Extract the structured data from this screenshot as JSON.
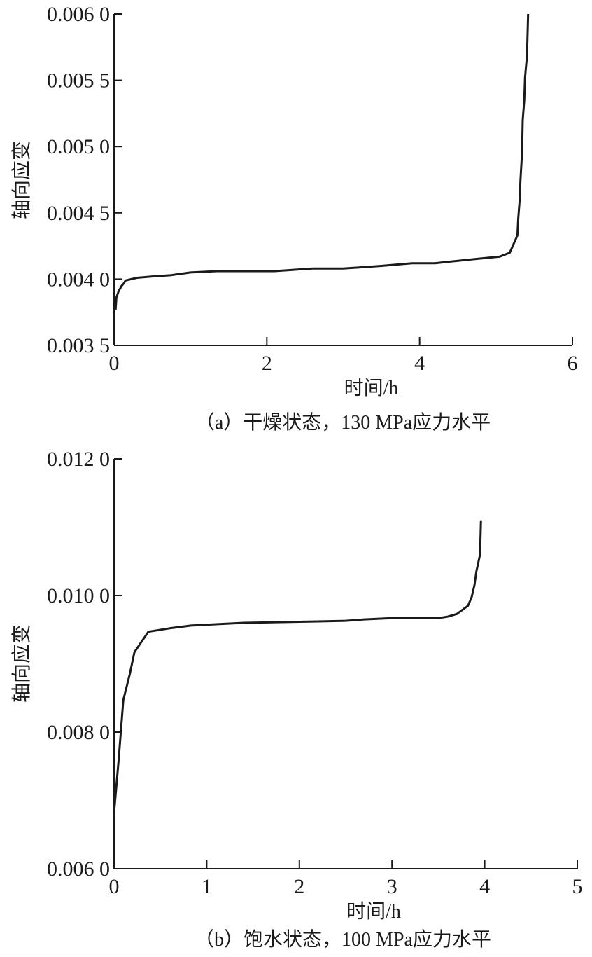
{
  "chart_data": [
    {
      "type": "line",
      "caption": "（a）干燥状态，130 MPa应力水平",
      "xlabel": "时间/h",
      "ylabel": "轴向应变",
      "xlim": [
        0,
        6
      ],
      "ylim": [
        0.0035,
        0.006
      ],
      "xticks": [
        "0",
        "2",
        "4",
        "6"
      ],
      "xtick_values": [
        0,
        2,
        4,
        6
      ],
      "yticks": [
        "0.003 5",
        "0.004 0",
        "0.004 5",
        "0.005 0",
        "0.005 5",
        "0.006 0"
      ],
      "ytick_values": [
        0.0035,
        0.004,
        0.0045,
        0.005,
        0.0055,
        0.006
      ],
      "grid": false,
      "series": [
        {
          "x": [
            0.02,
            0.03,
            0.06,
            0.1,
            0.13,
            0.15,
            0.3,
            0.5,
            0.75,
            1.0,
            1.35,
            1.7,
            2.1,
            2.6,
            3.0,
            3.5,
            3.9,
            4.2,
            4.7,
            5.05,
            5.18,
            5.28,
            5.29,
            5.31,
            5.32,
            5.34,
            5.35,
            5.37,
            5.38,
            5.4,
            5.41,
            5.42
          ],
          "y": [
            0.00377,
            0.00386,
            0.00391,
            0.00395,
            0.00397,
            0.00399,
            0.00401,
            0.00402,
            0.00403,
            0.00405,
            0.00406,
            0.00406,
            0.00406,
            0.00408,
            0.00408,
            0.0041,
            0.00412,
            0.00412,
            0.00415,
            0.00417,
            0.0042,
            0.00433,
            0.00445,
            0.0046,
            0.00475,
            0.00495,
            0.0052,
            0.00535,
            0.00552,
            0.00565,
            0.00578,
            0.006
          ]
        }
      ]
    },
    {
      "type": "line",
      "caption": "（b）饱水状态，100 MPa应力水平",
      "xlabel": "时间/h",
      "ylabel": "轴向应变",
      "xlim": [
        0,
        5
      ],
      "ylim": [
        0.006,
        0.012
      ],
      "xticks": [
        "0",
        "1",
        "2",
        "3",
        "4",
        "5"
      ],
      "xtick_values": [
        0,
        1,
        2,
        3,
        4,
        5
      ],
      "yticks": [
        "0.006 0",
        "0.008 0",
        "0.010 0",
        "0.012 0"
      ],
      "ytick_values": [
        0.006,
        0.008,
        0.01,
        0.012
      ],
      "grid": false,
      "series": [
        {
          "x": [
            0.0,
            0.05,
            0.1,
            0.17,
            0.22,
            0.37,
            0.6,
            0.83,
            1.1,
            1.4,
            1.8,
            2.2,
            2.5,
            2.7,
            3.0,
            3.3,
            3.5,
            3.6,
            3.7,
            3.82,
            3.86,
            3.89,
            3.91,
            3.95,
            3.96
          ],
          "y": [
            0.00682,
            0.0076,
            0.00847,
            0.00885,
            0.00917,
            0.00947,
            0.00952,
            0.00956,
            0.00958,
            0.0096,
            0.00961,
            0.00962,
            0.00963,
            0.00965,
            0.00967,
            0.00967,
            0.00967,
            0.00969,
            0.00973,
            0.00985,
            0.00998,
            0.01015,
            0.01035,
            0.0106,
            0.0111
          ]
        }
      ]
    }
  ]
}
